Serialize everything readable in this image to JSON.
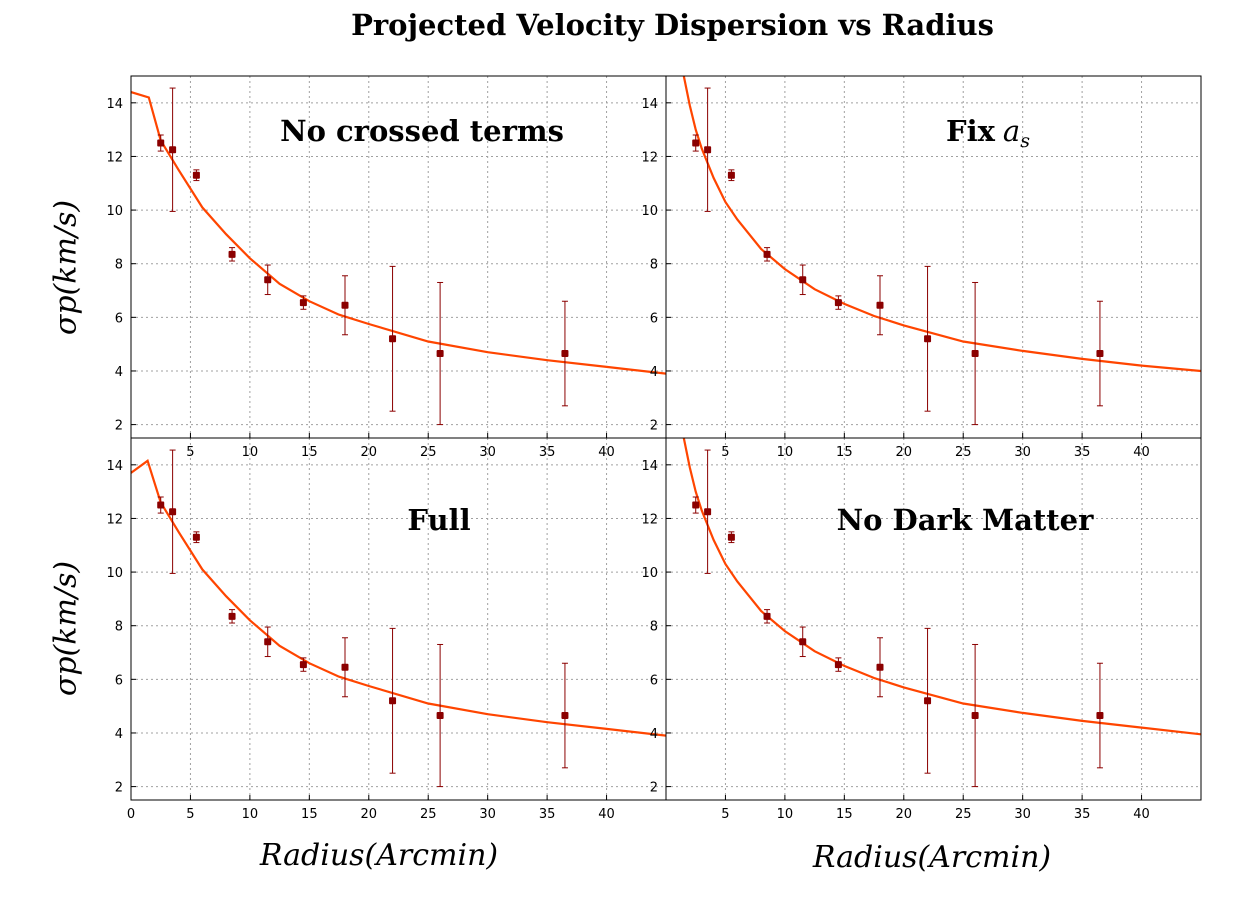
{
  "title": "Projected Velocity Dispersion vs Radius",
  "ylabel": "σp(km/s)",
  "xlabel": "Radius(Arcmin)",
  "colors": {
    "model": "#ff4500",
    "data": "#8b0000",
    "grid": "#a0a0a0",
    "axis": "#000000"
  },
  "chart_data": [
    {
      "type": "scatter",
      "panel": "top-left",
      "label": "No crossed terms",
      "xlim": [
        0,
        45
      ],
      "ylim": [
        1.5,
        15
      ],
      "xticks": [
        5,
        10,
        15,
        20,
        25,
        30,
        35,
        40
      ],
      "yticks": [
        2,
        4,
        6,
        8,
        10,
        12,
        14
      ],
      "series": [
        {
          "kind": "points",
          "x": [
            2.5,
            3.5,
            5.5,
            8.5,
            11.5,
            14.5,
            18.0,
            22.0,
            26.0,
            36.5
          ],
          "y": [
            12.5,
            12.25,
            11.3,
            8.35,
            7.4,
            6.55,
            6.45,
            5.2,
            4.65,
            4.65
          ],
          "err": [
            0.3,
            2.3,
            0.2,
            0.25,
            0.55,
            0.25,
            1.1,
            2.7,
            2.65,
            1.95
          ]
        },
        {
          "kind": "line",
          "x": [
            0,
            1.5,
            2.5,
            4,
            6,
            8,
            10,
            12.5,
            15,
            17.5,
            20,
            25,
            30,
            35,
            40,
            45
          ],
          "y": [
            14.4,
            14.2,
            12.6,
            11.5,
            10.1,
            9.1,
            8.2,
            7.25,
            6.6,
            6.1,
            5.75,
            5.1,
            4.7,
            4.4,
            4.15,
            3.9
          ]
        }
      ]
    },
    {
      "type": "scatter",
      "panel": "top-right",
      "label": "Fix",
      "label_sub": "as",
      "xlim": [
        0,
        45
      ],
      "ylim": [
        1.5,
        15
      ],
      "xticks": [
        5,
        10,
        15,
        20,
        25,
        30,
        35,
        40
      ],
      "yticks": [
        2,
        4,
        6,
        8,
        10,
        12,
        14
      ],
      "series": [
        {
          "kind": "points",
          "x": [
            2.5,
            3.5,
            5.5,
            8.5,
            11.5,
            14.5,
            18.0,
            22.0,
            26.0,
            36.5
          ],
          "y": [
            12.5,
            12.25,
            11.3,
            8.35,
            7.4,
            6.55,
            6.45,
            5.2,
            4.65,
            4.65
          ],
          "err": [
            0.3,
            2.3,
            0.2,
            0.25,
            0.55,
            0.25,
            1.1,
            2.7,
            2.65,
            1.95
          ]
        },
        {
          "kind": "line",
          "x": [
            1.5,
            2.0,
            2.5,
            3,
            4,
            5,
            6,
            8,
            10,
            12.5,
            15,
            17.5,
            20,
            25,
            30,
            35,
            40,
            45
          ],
          "y": [
            15.0,
            13.9,
            13.0,
            12.3,
            11.2,
            10.3,
            9.65,
            8.55,
            7.8,
            7.05,
            6.5,
            6.05,
            5.7,
            5.1,
            4.75,
            4.45,
            4.2,
            4.0
          ]
        }
      ]
    },
    {
      "type": "scatter",
      "panel": "bottom-left",
      "label": "Full",
      "xlim": [
        0,
        45
      ],
      "ylim": [
        1.5,
        15
      ],
      "xticks": [
        0,
        5,
        10,
        15,
        20,
        25,
        30,
        35,
        40
      ],
      "yticks": [
        2,
        4,
        6,
        8,
        10,
        12,
        14
      ],
      "series": [
        {
          "kind": "points",
          "x": [
            2.5,
            3.5,
            5.5,
            8.5,
            11.5,
            14.5,
            18.0,
            22.0,
            26.0,
            36.5
          ],
          "y": [
            12.5,
            12.25,
            11.3,
            8.35,
            7.4,
            6.55,
            6.45,
            5.2,
            4.65,
            4.65
          ],
          "err": [
            0.3,
            2.3,
            0.2,
            0.25,
            0.55,
            0.25,
            1.1,
            2.7,
            2.65,
            1.95
          ]
        },
        {
          "kind": "line",
          "x": [
            0,
            1.4,
            2.5,
            4,
            6,
            8,
            10,
            12.5,
            15,
            17.5,
            20,
            25,
            30,
            35,
            40,
            45
          ],
          "y": [
            13.7,
            14.15,
            12.6,
            11.5,
            10.1,
            9.1,
            8.2,
            7.25,
            6.6,
            6.1,
            5.75,
            5.1,
            4.7,
            4.4,
            4.15,
            3.9
          ]
        }
      ]
    },
    {
      "type": "scatter",
      "panel": "bottom-right",
      "label": "No Dark Matter",
      "xlim": [
        0,
        45
      ],
      "ylim": [
        1.5,
        15
      ],
      "xticks": [
        5,
        10,
        15,
        20,
        25,
        30,
        35,
        40
      ],
      "yticks": [
        2,
        4,
        6,
        8,
        10,
        12,
        14
      ],
      "series": [
        {
          "kind": "points",
          "x": [
            2.5,
            3.5,
            5.5,
            8.5,
            11.5,
            14.5,
            18.0,
            22.0,
            26.0,
            36.5
          ],
          "y": [
            12.5,
            12.25,
            11.3,
            8.35,
            7.4,
            6.55,
            6.45,
            5.2,
            4.65,
            4.65
          ],
          "err": [
            0.3,
            2.3,
            0.2,
            0.25,
            0.55,
            0.25,
            1.1,
            2.7,
            2.65,
            1.95
          ]
        },
        {
          "kind": "line",
          "x": [
            1.5,
            2.0,
            2.5,
            3,
            4,
            5,
            6,
            8,
            10,
            12.5,
            15,
            17.5,
            20,
            25,
            30,
            35,
            40,
            45
          ],
          "y": [
            15.0,
            13.9,
            13.0,
            12.3,
            11.2,
            10.3,
            9.65,
            8.55,
            7.8,
            7.05,
            6.5,
            6.05,
            5.7,
            5.1,
            4.75,
            4.45,
            4.2,
            3.95
          ]
        }
      ]
    }
  ]
}
